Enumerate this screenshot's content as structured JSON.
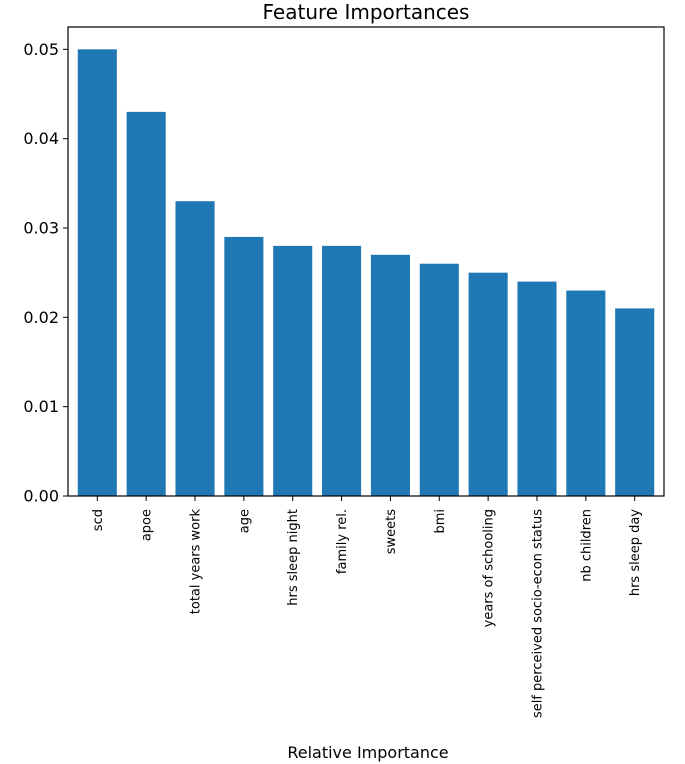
{
  "chart_data": {
    "type": "bar",
    "title": "Feature Importances",
    "xlabel": "Relative Importance",
    "ylabel": "",
    "categories": [
      "scd",
      "apoe",
      "total years work",
      "age",
      "hrs sleep night",
      "family rel.",
      "sweets",
      "bmi",
      "years of schooling",
      "self perceived socio-econ status",
      "nb children",
      "hrs sleep day"
    ],
    "values": [
      0.05,
      0.043,
      0.033,
      0.029,
      0.028,
      0.028,
      0.027,
      0.026,
      0.025,
      0.024,
      0.023,
      0.021
    ],
    "ylim": [
      0,
      0.0525
    ],
    "yticks": [
      "0.00",
      "0.01",
      "0.02",
      "0.03",
      "0.04",
      "0.05"
    ],
    "bar_color": "#1f77b4",
    "grid": false,
    "legend": "none"
  }
}
